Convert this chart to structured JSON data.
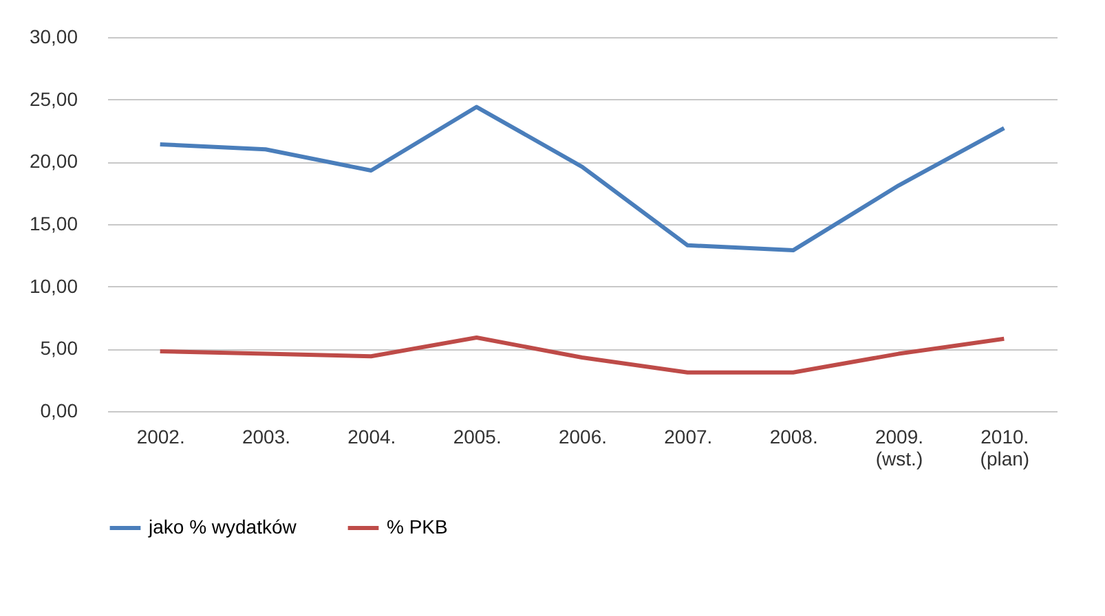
{
  "chart_data": {
    "type": "line",
    "categories": [
      "2002.",
      "2003.",
      "2004.",
      "2005.",
      "2006.",
      "2007.",
      "2008.",
      "2009.\n(wst.)",
      "2010.\n(plan)"
    ],
    "series": [
      {
        "name": "jako % wydatków",
        "color": "#4a7ebb",
        "values": [
          21.4,
          21.0,
          19.3,
          24.4,
          19.6,
          13.3,
          12.9,
          18.1,
          22.7
        ]
      },
      {
        "name": "% PKB",
        "color": "#be4b48",
        "values": [
          4.8,
          4.6,
          4.4,
          5.9,
          4.3,
          3.1,
          3.1,
          4.6,
          5.8
        ]
      }
    ],
    "ylim": [
      0,
      30
    ],
    "yticks": [
      {
        "value": 0,
        "label": "0,00"
      },
      {
        "value": 5,
        "label": "5,00"
      },
      {
        "value": 10,
        "label": "10,00"
      },
      {
        "value": 15,
        "label": "15,00"
      },
      {
        "value": 20,
        "label": "20,00"
      },
      {
        "value": 25,
        "label": "25,00"
      },
      {
        "value": 30,
        "label": "30,00"
      }
    ],
    "grid": "y",
    "legend": "bottom",
    "marker": "none",
    "line_style": "solid"
  }
}
